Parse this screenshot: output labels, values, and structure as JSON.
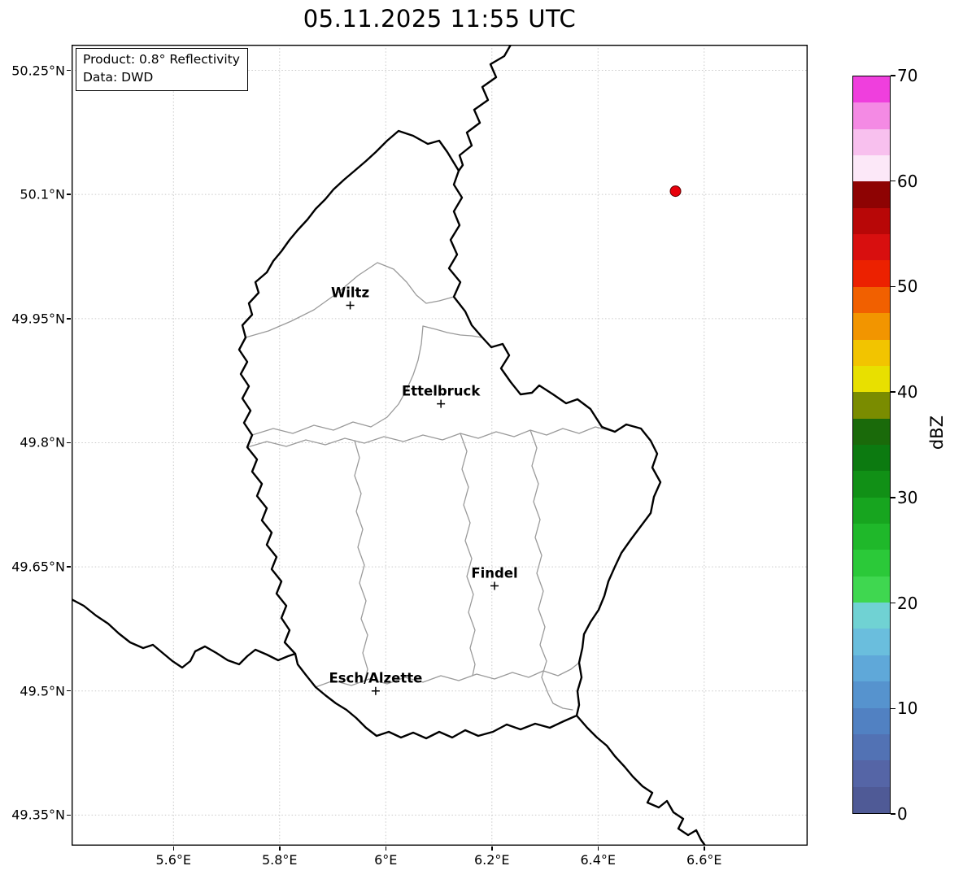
{
  "title": "05.11.2025 11:55 UTC",
  "info_box": {
    "line1": "Product: 0.8° Reflectivity",
    "line2": "Data: DWD"
  },
  "axes": {
    "extent": {
      "lon_min": 5.408,
      "lon_max": 6.795,
      "lat_min": 49.313,
      "lat_max": 50.281
    },
    "lon_ticks": [
      {
        "value": 5.6,
        "label": "5.6°E"
      },
      {
        "value": 5.8,
        "label": "5.8°E"
      },
      {
        "value": 6.0,
        "label": "6°E"
      },
      {
        "value": 6.2,
        "label": "6.2°E"
      },
      {
        "value": 6.4,
        "label": "6.4°E"
      },
      {
        "value": 6.6,
        "label": "6.6°E"
      }
    ],
    "lat_ticks": [
      {
        "value": 50.25,
        "label": "50.25°N"
      },
      {
        "value": 50.1,
        "label": "50.1°N"
      },
      {
        "value": 49.95,
        "label": "49.95°N"
      },
      {
        "value": 49.8,
        "label": "49.8°N"
      },
      {
        "value": 49.65,
        "label": "49.65°N"
      },
      {
        "value": 49.5,
        "label": "49.5°N"
      },
      {
        "value": 49.35,
        "label": "49.35°N"
      }
    ]
  },
  "cities": [
    {
      "name": "Wiltz",
      "lon": 5.933,
      "lat": 49.966
    },
    {
      "name": "Ettelbruck",
      "lon": 6.104,
      "lat": 49.847
    },
    {
      "name": "Findel",
      "lon": 6.205,
      "lat": 49.627
    },
    {
      "name": "Esch/Alzette",
      "lon": 5.981,
      "lat": 49.5
    }
  ],
  "radar_marker": {
    "lon": 6.546,
    "lat": 50.104,
    "color": "#e8000b",
    "edge_color": "#5a0000"
  },
  "colorbar": {
    "label": "dBZ",
    "min": 0,
    "max": 70,
    "ticks": [
      0,
      10,
      20,
      30,
      40,
      50,
      60,
      70
    ],
    "segment_dbz": 2.5,
    "colors": [
      "#4f5a96",
      "#5565a6",
      "#5272b4",
      "#5181c2",
      "#5693ce",
      "#5fa8d9",
      "#6abedd",
      "#70d2d3",
      "#3fd750",
      "#2bc939",
      "#1fb82a",
      "#17a51f",
      "#119016",
      "#0c7a10",
      "#1a6a0a",
      "#7a8c00",
      "#e8e000",
      "#f2c400",
      "#f29500",
      "#f16000",
      "#ec2100",
      "#d80f0f",
      "#b80707",
      "#8e0303",
      "#fce8f8",
      "#f8c0ee",
      "#f48ae4",
      "#ef3fdd"
    ]
  }
}
